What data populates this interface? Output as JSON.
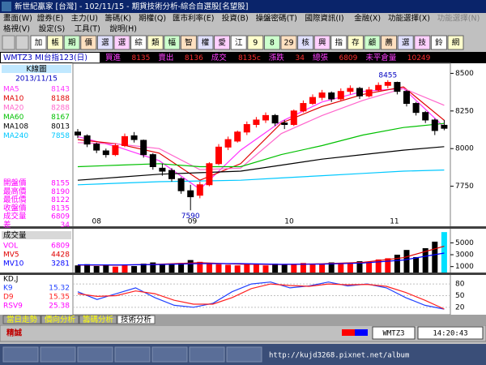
{
  "window": {
    "title": "新世紀贏家 [台灣] - 102/11/15 - 期貨技術分析-綜合自選股[名望股]",
    "menu1": [
      "畫面(W)",
      "證券(E)",
      "主力(U)",
      "籌碼(K)",
      "期權(Q)",
      "匯市利率(E)",
      "投資(B)",
      "操盤密碼(T)",
      "國際資訊(I)",
      "金融(X)",
      "功能選擇(X)",
      "功能選擇(N)"
    ],
    "menu2": [
      "格視(V)",
      "設定(S)",
      "工具(T)",
      "說明(H)"
    ],
    "toolbar": [
      "加",
      "帳",
      "期",
      "價",
      "選",
      "選",
      "綜",
      "類",
      "幅",
      "智",
      "權",
      "愛",
      "江",
      "9",
      "8",
      "29",
      "核",
      "興",
      "指",
      "存",
      "顧",
      "薦",
      "選",
      "技",
      "鈴",
      "網"
    ]
  },
  "quote": {
    "symbol": "WMTZ3 MI台指123(日)",
    "fields": [
      {
        "label": "買進",
        "value": "8135"
      },
      {
        "label": "賣出",
        "value": "8136"
      },
      {
        "label": "成交",
        "value": "8135c"
      },
      {
        "label": "漲跌",
        "value": "34"
      },
      {
        "label": "總張",
        "value": "6809"
      },
      {
        "label": "未平倉量",
        "value": "10249"
      }
    ]
  },
  "price_panel": {
    "title": "K線圖",
    "date": "2013/11/15",
    "ylim": [
      7500,
      8540
    ],
    "yticks": [
      7750,
      8000,
      8250,
      8500
    ],
    "months": [
      "08",
      "09",
      "10",
      "11"
    ],
    "high_label": "8455",
    "low_label": "7590",
    "ma": [
      {
        "name": "MA5",
        "value": 8143,
        "color": "#ff33ff",
        "values": [
          8080,
          8010,
          7920,
          7730,
          7990,
          8180,
          8310,
          8380,
          8400,
          8143
        ]
      },
      {
        "name": "MA10",
        "value": 8188,
        "color": "#e00000",
        "values": [
          8060,
          8030,
          7970,
          7790,
          7900,
          8170,
          8280,
          8360,
          8410,
          8188
        ]
      },
      {
        "name": "MA20",
        "value": 8288,
        "color": "#ff66cc",
        "values": [
          8040,
          8030,
          8000,
          7860,
          7870,
          8100,
          8220,
          8320,
          8400,
          8288
        ]
      },
      {
        "name": "MA60",
        "value": 8167,
        "color": "#00c000",
        "values": [
          7880,
          7890,
          7900,
          7880,
          7880,
          7960,
          8020,
          8090,
          8140,
          8167
        ]
      },
      {
        "name": "MA108",
        "value": 8013,
        "color": "#000000",
        "values": [
          7790,
          7810,
          7830,
          7840,
          7850,
          7890,
          7930,
          7960,
          7990,
          8013
        ]
      },
      {
        "name": "MA240",
        "value": 7858,
        "color": "#00c8ff",
        "values": [
          7760,
          7770,
          7780,
          7785,
          7790,
          7805,
          7820,
          7835,
          7850,
          7858
        ]
      }
    ],
    "stats": [
      {
        "label": "開盤價",
        "value": 8155
      },
      {
        "label": "最高價",
        "value": 8190
      },
      {
        "label": "最低價",
        "value": 8122
      },
      {
        "label": "收盤價",
        "value": 8135
      },
      {
        "label": "成交量",
        "value": 6809
      },
      {
        "label": "差",
        "value": 34
      }
    ],
    "candles": [
      [
        8110,
        8130,
        8070,
        8090
      ],
      [
        8085,
        8095,
        8010,
        8030
      ],
      [
        8030,
        8040,
        7970,
        7990
      ],
      [
        7985,
        8000,
        7940,
        7960
      ],
      [
        7960,
        8035,
        7950,
        8020
      ],
      [
        8020,
        8100,
        8010,
        8080
      ],
      [
        8085,
        8110,
        8040,
        8060
      ],
      [
        8055,
        8060,
        7940,
        7960
      ],
      [
        7960,
        7970,
        7860,
        7880
      ],
      [
        7870,
        7900,
        7820,
        7850
      ],
      [
        7855,
        7870,
        7780,
        7800
      ],
      [
        7800,
        7810,
        7700,
        7720
      ],
      [
        7720,
        7760,
        7590,
        7680
      ],
      [
        7690,
        7780,
        7670,
        7760
      ],
      [
        7760,
        7910,
        7750,
        7900
      ],
      [
        7900,
        8030,
        7890,
        8010
      ],
      [
        8010,
        8080,
        7990,
        8060
      ],
      [
        8050,
        8120,
        8040,
        8110
      ],
      [
        8110,
        8180,
        8090,
        8160
      ],
      [
        8160,
        8210,
        8140,
        8190
      ],
      [
        8190,
        8240,
        8170,
        8220
      ],
      [
        8220,
        8230,
        8150,
        8170
      ],
      [
        8170,
        8190,
        8130,
        8160
      ],
      [
        8160,
        8260,
        8150,
        8250
      ],
      [
        8250,
        8320,
        8240,
        8300
      ],
      [
        8300,
        8360,
        8290,
        8340
      ],
      [
        8340,
        8390,
        8320,
        8370
      ],
      [
        8370,
        8380,
        8310,
        8330
      ],
      [
        8330,
        8400,
        8320,
        8380
      ],
      [
        8380,
        8420,
        8360,
        8400
      ],
      [
        8400,
        8410,
        8330,
        8350
      ],
      [
        8350,
        8410,
        8340,
        8390
      ],
      [
        8390,
        8440,
        8380,
        8420
      ],
      [
        8420,
        8455,
        8400,
        8440
      ],
      [
        8440,
        8445,
        8360,
        8380
      ],
      [
        8380,
        8390,
        8280,
        8300
      ],
      [
        8300,
        8310,
        8220,
        8240
      ],
      [
        8240,
        8250,
        8170,
        8190
      ],
      [
        8190,
        8200,
        8090,
        8120
      ],
      [
        8155,
        8190,
        8122,
        8135
      ]
    ]
  },
  "volume_panel": {
    "title": "成交量",
    "ylim": [
      0,
      7100
    ],
    "yticks": [
      1000,
      3000,
      5000
    ],
    "legend": [
      {
        "name": "VOL",
        "value": 6809,
        "color": "#ff00ff"
      },
      {
        "name": "MV5",
        "value": 4428,
        "color": "#e00000",
        "values": [
          1250,
          1240,
          1400,
          1650,
          1400,
          1350,
          1480,
          1700,
          2500,
          4428
        ]
      },
      {
        "name": "MV10",
        "value": 3281,
        "color": "#0000ff",
        "values": [
          1300,
          1280,
          1350,
          1500,
          1500,
          1380,
          1420,
          1600,
          2100,
          3281
        ]
      }
    ],
    "values": [
      1200,
      1400,
      1100,
      1300,
      1000,
      1200,
      1100,
      1500,
      1700,
      1300,
      1400,
      1600,
      2100,
      1800,
      1500,
      1400,
      1300,
      1200,
      1400,
      1300,
      1200,
      1500,
      1300,
      1400,
      1600,
      1500,
      1400,
      1700,
      1600,
      1500,
      1900,
      1800,
      2200,
      2400,
      3000,
      3800,
      2600,
      4100,
      5200,
      6809
    ]
  },
  "kd_panel": {
    "title": "KD,J",
    "ylim": [
      5,
      99
    ],
    "yticks": [
      20,
      50,
      80
    ],
    "legend": [
      {
        "name": "K9",
        "value": 15.32,
        "color": "#2040ff",
        "values": [
          60,
          40,
          55,
          70,
          45,
          25,
          20,
          30,
          60,
          80,
          85,
          70,
          75,
          85,
          75,
          80,
          70,
          45,
          25,
          15.32
        ]
      },
      {
        "name": "D9",
        "value": 15.35,
        "color": "#ff2020",
        "values": [
          55,
          48,
          50,
          62,
          55,
          38,
          28,
          28,
          45,
          68,
          80,
          76,
          74,
          80,
          78,
          79,
          74,
          58,
          38,
          15.35
        ]
      },
      {
        "name": "RSV9",
        "value": 25.38,
        "color": "#ff00ff"
      }
    ]
  },
  "tabs": [
    "當日走勢",
    "價向分析",
    "籌碼分析",
    "技術分析"
  ],
  "active_tab": 3,
  "status": {
    "broker": "精誠",
    "symbol": "WMTZ3",
    "time": "14:20:43"
  },
  "taskbar": {
    "url": "http://kujd3268.pixnet.net/album"
  }
}
